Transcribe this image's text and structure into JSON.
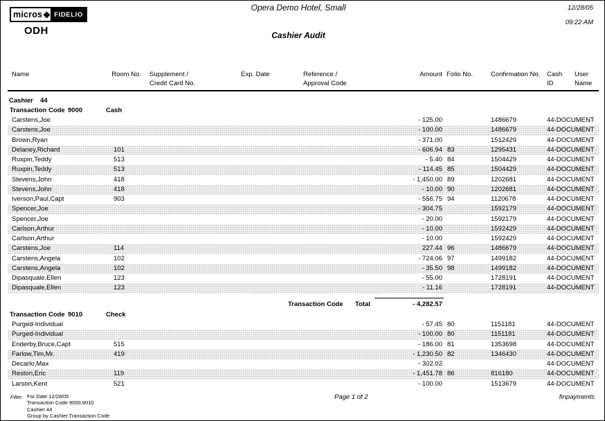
{
  "report": {
    "brand_left": "micros",
    "brand_right": "FIDELIO",
    "property_code": "ODH",
    "hotel_name": "Opera Demo Hotel, Small",
    "title": "Cashier Audit",
    "date": "12/28/05",
    "time": "09:22 AM"
  },
  "columns": {
    "name": "Name",
    "room": "Room No.",
    "supplement_l1": "Supplement /",
    "supplement_l2": "Credit Card No.",
    "exp_date": "Exp. Date",
    "reference_l1": "Reference /",
    "reference_l2": "Approval Code",
    "amount": "Amount",
    "folio": "Folio No.",
    "confirmation": "Confirmation No.",
    "cash_l1": "Cash",
    "cash_l2": "ID",
    "user_l1": "User",
    "user_l2": "Name"
  },
  "group": {
    "label": "Cashier",
    "value": "44"
  },
  "sections": [
    {
      "label": "Transaction Code",
      "code": "9000",
      "name": "Cash",
      "rows": [
        {
          "name": "Carstens,Joe",
          "room": "",
          "amount": "- 125.00",
          "folio": "",
          "conf": "1486679",
          "user": "44-DOCUMENT"
        },
        {
          "name": "Carstens,Joe",
          "room": "",
          "amount": "- 100.00",
          "folio": "",
          "conf": "1486679",
          "user": "44-DOCUMENT"
        },
        {
          "name": "Brown,Ryan",
          "room": "",
          "amount": "- 371.00",
          "folio": "",
          "conf": "1512429",
          "user": "44-DOCUMENT"
        },
        {
          "name": "Delaney,Richard",
          "room": "101",
          "amount": "- 606.94",
          "folio": "83",
          "conf": "1295431",
          "user": "44-DOCUMENT"
        },
        {
          "name": "Ruxpin,Teddy",
          "room": "513",
          "amount": "- 5.40",
          "folio": "84",
          "conf": "1504429",
          "user": "44-DOCUMENT"
        },
        {
          "name": "Ruxpin,Teddy",
          "room": "513",
          "amount": "- 114.45",
          "folio": "85",
          "conf": "1504429",
          "user": "44-DOCUMENT"
        },
        {
          "name": "Stevens,John",
          "room": "418",
          "amount": "- 1,450.00",
          "folio": "89",
          "conf": "1202681",
          "user": "44-DOCUMENT"
        },
        {
          "name": "Stevens,John",
          "room": "418",
          "amount": "- 10.00",
          "folio": "90",
          "conf": "1202681",
          "user": "44-DOCUMENT"
        },
        {
          "name": "Iverson,Paul,Capt",
          "room": "903",
          "amount": "- 556.75",
          "folio": "94",
          "conf": "1120678",
          "user": "44-DOCUMENT"
        },
        {
          "name": "Spencer,Joe",
          "room": "",
          "amount": "- 304.75",
          "folio": "",
          "conf": "1592179",
          "user": "44-DOCUMENT"
        },
        {
          "name": "Spencer,Joe",
          "room": "",
          "amount": "- 20.00",
          "folio": "",
          "conf": "1592179",
          "user": "44-DOCUMENT"
        },
        {
          "name": "Carlson,Arthur",
          "room": "",
          "amount": "- 10.00",
          "folio": "",
          "conf": "1592429",
          "user": "44-DOCUMENT"
        },
        {
          "name": "Carlson,Arthur",
          "room": "",
          "amount": "- 10.00",
          "folio": "",
          "conf": "1592429",
          "user": "44-DOCUMENT"
        },
        {
          "name": "Carstens,Joe",
          "room": "114",
          "amount": "227.44",
          "folio": "96",
          "conf": "1486679",
          "user": "44-DOCUMENT"
        },
        {
          "name": "Carstens,Angela",
          "room": "102",
          "amount": "- 724.06",
          "folio": "97",
          "conf": "1499182",
          "user": "44-DOCUMENT"
        },
        {
          "name": "Carstens,Angela",
          "room": "102",
          "amount": "- 35.50",
          "folio": "98",
          "conf": "1499182",
          "user": "44-DOCUMENT"
        },
        {
          "name": "Dipasquale,Ellen",
          "room": "123",
          "amount": "- 55.00",
          "folio": "",
          "conf": "1728191",
          "user": "44-DOCUMENT"
        },
        {
          "name": "Dipasquale,Ellen",
          "room": "123",
          "amount": "- 11.16",
          "folio": "",
          "conf": "1728191",
          "user": "44-DOCUMENT"
        }
      ],
      "total": {
        "label": "Transaction Code",
        "total_label": "Total",
        "amount": "- 4,282.57"
      }
    },
    {
      "label": "Transaction Code",
      "code": "9010",
      "name": "Check",
      "rows": [
        {
          "name": "Purged-Individual",
          "room": "",
          "amount": "- 57.45",
          "folio": "80",
          "conf": "1151181",
          "user": "44-DOCUMENT"
        },
        {
          "name": "Purged-Individual",
          "room": "",
          "amount": "- 100.00",
          "folio": "80",
          "conf": "1151181",
          "user": "44-DOCUMENT"
        },
        {
          "name": "Enderby,Bruce,Capt",
          "room": "515",
          "amount": "- 186.00",
          "folio": "81",
          "conf": "1353698",
          "user": "44-DOCUMENT"
        },
        {
          "name": "Farlow,Tim,Mr.",
          "room": "419",
          "amount": "- 1,230.50",
          "folio": "82",
          "conf": "1346430",
          "user": "44-DOCUMENT"
        },
        {
          "name": "Decarlo,Max",
          "room": "",
          "amount": "- 302.02",
          "folio": "",
          "conf": "",
          "user": "44-DOCUMENT"
        },
        {
          "name": "Reston,Eric",
          "room": "119",
          "amount": "- 1,451.78",
          "folio": "86",
          "conf": "816180",
          "user": "44-DOCUMENT"
        },
        {
          "name": "Larson,Kent",
          "room": "521",
          "amount": "- 100.00",
          "folio": "",
          "conf": "1513679",
          "user": "44-DOCUMENT"
        }
      ]
    }
  ],
  "footer": {
    "filter_label": "Filter",
    "filter_lines": [
      "For Date 12/28/05",
      "Transaction Code 9000,9010",
      "Cashier 44",
      "Group by Cashier,Transaction Code"
    ],
    "page": "Page 1  of 2",
    "report_name": "finpayments"
  }
}
